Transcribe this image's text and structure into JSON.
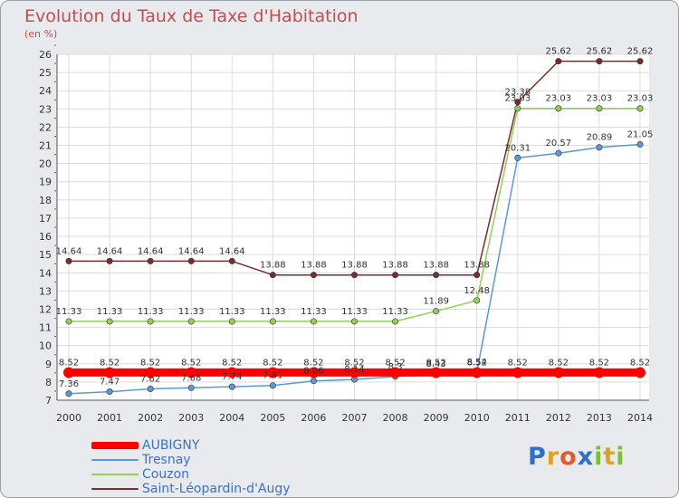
{
  "title": "Evolution du Taux de Taxe d'Habitation",
  "subtitle": "(en %)",
  "logo": {
    "letters": [
      "P",
      "r",
      "o",
      "x",
      "i",
      "t",
      "i"
    ],
    "colors": [
      "#2f6fc9",
      "#e0a21b",
      "#e35b2a",
      "#2f6fc9",
      "#7bbf3a",
      "#e0a21b",
      "#7bbf3a"
    ]
  },
  "chart_data": {
    "type": "line",
    "x": [
      "2000",
      "2001",
      "2002",
      "2003",
      "2004",
      "2005",
      "2006",
      "2007",
      "2008",
      "2009",
      "2010",
      "2011",
      "2012",
      "2013",
      "2014"
    ],
    "ylim": [
      7,
      26
    ],
    "yticks": [
      "7",
      "8",
      "9",
      "10",
      "11",
      "12",
      "13",
      "14",
      "15",
      "16",
      "17",
      "18",
      "19",
      "20",
      "21",
      "22",
      "23",
      "24",
      "25",
      "26"
    ],
    "series": [
      {
        "name": "AUBIGNY",
        "color": "#ff0000",
        "values": [
          8.52,
          8.52,
          8.52,
          8.52,
          8.52,
          8.52,
          8.52,
          8.52,
          8.52,
          8.52,
          8.52,
          8.52,
          8.52,
          8.52,
          8.52
        ],
        "labels": [
          "8.52",
          "8.52",
          "8.52",
          "8.52",
          "8.52",
          "8.52",
          "8.52",
          "8.52",
          "8.52",
          "8.52",
          "8.52",
          "8.52",
          "8.52",
          "8.52",
          "8.52"
        ]
      },
      {
        "name": "Tresnay",
        "color": "#5b9bd5",
        "values": [
          7.36,
          7.47,
          7.62,
          7.68,
          7.74,
          7.81,
          8.06,
          8.14,
          8.3,
          8.43,
          8.54,
          20.31,
          20.57,
          20.89,
          21.05
        ],
        "labels": [
          "7.36",
          "7.47",
          "7.62",
          "7.68",
          "7.74",
          "7.81",
          "8.06",
          "8.14",
          "8.3",
          "8.43",
          "8.54",
          "20.31",
          "20.57",
          "20.89",
          "21.05"
        ]
      },
      {
        "name": "Couzon",
        "color": "#92d050",
        "values": [
          11.33,
          11.33,
          11.33,
          11.33,
          11.33,
          11.33,
          11.33,
          11.33,
          11.33,
          11.89,
          12.48,
          23.03,
          23.03,
          23.03,
          23.03
        ],
        "labels": [
          "11.33",
          "11.33",
          "11.33",
          "11.33",
          "11.33",
          "11.33",
          "11.33",
          "11.33",
          "11.33",
          "11.89",
          "12.48",
          "23.03",
          "23.03",
          "23.03",
          "23.03"
        ]
      },
      {
        "name": "Saint-Léopardin-d'Augy",
        "color": "#7b2c2c",
        "values": [
          14.64,
          14.64,
          14.64,
          14.64,
          14.64,
          13.88,
          13.88,
          13.88,
          13.88,
          13.88,
          13.88,
          23.38,
          25.62,
          25.62,
          25.62
        ],
        "labels": [
          "14.64",
          "14.64",
          "14.64",
          "14.64",
          "14.64",
          "13.88",
          "13.88",
          "13.88",
          "13.88",
          "13.88",
          "13.88",
          "23.38",
          "25.62",
          "25.62",
          "25.62"
        ]
      }
    ]
  }
}
